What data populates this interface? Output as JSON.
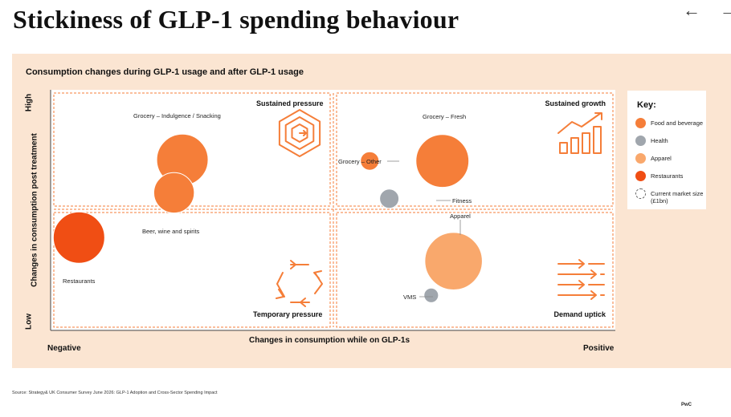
{
  "page": {
    "title": "Stickiness of GLP-1 spending behaviour",
    "source": "Source: Strategy& UK Consumer Survey June 2026: GLP-1 Adoption and Cross-Sector Spending Impact",
    "logo_text": "PwC",
    "nav": {
      "back_icon": "arrow-left-icon",
      "back_glyph": "←",
      "forward_icon": "arrow-right-icon",
      "forward_glyph": "→"
    }
  },
  "chart_data": {
    "type": "scatter",
    "title": "Consumption changes during GLP-1 usage and after GLP-1 usage",
    "xlabel": "Changes in consumption while on GLP-1s",
    "ylabel": "Changes in consumption post treatment",
    "x_low_label": "Negative",
    "x_high_label": "Positive",
    "y_low_label": "Low",
    "y_high_label": "High",
    "xlim": [
      -1,
      1
    ],
    "ylim": [
      -1,
      1
    ],
    "quadrants": [
      {
        "name": "Sustained pressure",
        "position": "top-left",
        "icon": "hexagon-spiral-icon"
      },
      {
        "name": "Sustained growth",
        "position": "top-right",
        "icon": "bar-growth-icon"
      },
      {
        "name": "Temporary pressure",
        "position": "bottom-left",
        "icon": "hexagon-cycle-icon"
      },
      {
        "name": "Demand uptick",
        "position": "bottom-right",
        "icon": "forward-arrows-icon"
      }
    ],
    "series": [
      {
        "name": "Food and beverage",
        "color": "#f57e39"
      },
      {
        "name": "Health",
        "color": "#a0a6ad"
      },
      {
        "name": "Apparel",
        "color": "#f9a86c"
      },
      {
        "name": "Restaurants",
        "color": "#f04e14"
      }
    ],
    "points": [
      {
        "label": "Grocery – Indulgence / Snacking",
        "series": "Food and beverage",
        "x": -0.54,
        "y": 0.42,
        "size": 1.0
      },
      {
        "label": "Beer, wine and spirits",
        "series": "Food and beverage",
        "x": -0.57,
        "y": 0.14,
        "size": 0.62
      },
      {
        "label": "Restaurants",
        "series": "Restaurants",
        "x": -0.91,
        "y": -0.24,
        "size": 1.0
      },
      {
        "label": "Grocery – Fresh",
        "series": "Food and beverage",
        "x": 0.39,
        "y": 0.41,
        "size": 1.06
      },
      {
        "label": "Grocery – Other",
        "series": "Food and beverage",
        "x": 0.13,
        "y": 0.41,
        "size": 0.13
      },
      {
        "label": "Fitness",
        "series": "Health",
        "x": 0.2,
        "y": 0.09,
        "size": 0.14
      },
      {
        "label": "Apparel",
        "series": "Apparel",
        "x": 0.43,
        "y": -0.44,
        "size": 1.25
      },
      {
        "label": "VMS",
        "series": "Health",
        "x": 0.35,
        "y": -0.73,
        "size": 0.08
      }
    ]
  },
  "key": {
    "title": "Key:",
    "items": [
      {
        "label": "Food and beverage",
        "color": "#f57e39",
        "dashed": false
      },
      {
        "label": "Health",
        "color": "#a0a6ad",
        "dashed": false
      },
      {
        "label": "Apparel",
        "color": "#f9a86c",
        "dashed": false
      },
      {
        "label": "Restaurants",
        "color": "#f04e14",
        "dashed": false
      },
      {
        "label": "Current market size (£1bn)",
        "color": "#666666",
        "dashed": true
      }
    ]
  }
}
